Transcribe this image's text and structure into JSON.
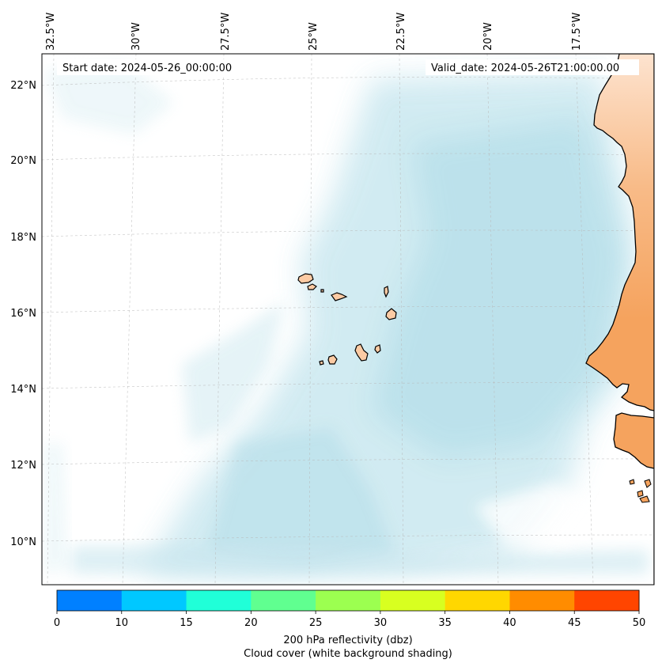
{
  "map": {
    "info": {
      "start_date": "Start date: 2024-05-26_00:00:00",
      "valid_date": "Valid_date: 2024-05-26T21:00:00.00"
    },
    "longitude_labels": [
      "32.5°W",
      "30°W",
      "27.5°W",
      "25°W",
      "22.5°W",
      "20°W",
      "17.5°W"
    ],
    "latitude_labels": [
      "22°N",
      "20°N",
      "18°N",
      "16°N",
      "14°N",
      "12°N",
      "10°N"
    ],
    "colors": {
      "land": "#f5a35e",
      "island": "#fccba4",
      "cloud": "#a8d8e6",
      "coastline": "#000000"
    }
  },
  "colorbar": {
    "ticks": [
      "0",
      "10",
      "15",
      "20",
      "25",
      "30",
      "35",
      "40",
      "45",
      "50"
    ],
    "colors": [
      "#0080ff",
      "#00c8ff",
      "#20ffd8",
      "#60ff90",
      "#9cff50",
      "#d8ff20",
      "#ffd700",
      "#ff8c00",
      "#ff4500"
    ],
    "label": "200 hPa reflectivity (dbz)",
    "sublabel": "Cloud cover (white background shading)"
  }
}
